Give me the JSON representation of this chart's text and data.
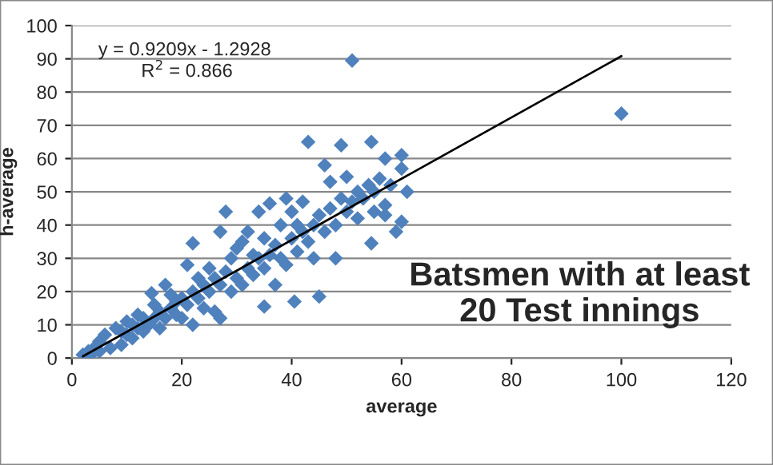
{
  "chart_data": {
    "type": "scatter",
    "xlabel": "average",
    "ylabel": "h-average",
    "xlim": [
      0,
      120
    ],
    "xticks": [
      0,
      20,
      40,
      60,
      80,
      100,
      120
    ],
    "ylim": [
      0,
      100
    ],
    "yticks": [
      0,
      10,
      20,
      30,
      40,
      50,
      60,
      70,
      80,
      90,
      100
    ],
    "grid": "y",
    "legend": false,
    "annotations": [
      "y = 0.9209x - 1.2928",
      "R$^{2}$ = 0.866",
      "Batsmen with at least\n20 Test innings"
    ],
    "series": [
      {
        "color": "#4f81bd",
        "marker": "diamond",
        "x": [
          2,
          3,
          3.5,
          4,
          5,
          5,
          6,
          7,
          8,
          9,
          9,
          10,
          10,
          11,
          11,
          12,
          12,
          13,
          13,
          14,
          14.5,
          15,
          15,
          16,
          16,
          17,
          17,
          18,
          18,
          19,
          19,
          20,
          20,
          21,
          21,
          22,
          22,
          22,
          23,
          23,
          24,
          24,
          25,
          25,
          26,
          26,
          27,
          27,
          27,
          28,
          28,
          29,
          29,
          30,
          30,
          31,
          31,
          32,
          32,
          33,
          33,
          34,
          34,
          35,
          35,
          35,
          36,
          36,
          37,
          37,
          38,
          38,
          39,
          39,
          40,
          40,
          40.5,
          41,
          41,
          42,
          42,
          43,
          43,
          44,
          44,
          45,
          45,
          46,
          46,
          47,
          47,
          48,
          48,
          49,
          49,
          50,
          50,
          51,
          51,
          52,
          52,
          53,
          54,
          54.5,
          54.5,
          55,
          55,
          56,
          57,
          57,
          57,
          58,
          59,
          60,
          60,
          61,
          60,
          100
        ],
        "values": [
          1,
          2,
          1,
          3,
          2,
          5,
          7,
          3,
          9,
          4,
          8,
          7,
          11,
          6,
          10,
          9,
          13,
          8,
          12,
          10,
          19.5,
          12,
          16,
          9,
          14,
          12,
          22,
          15,
          19,
          13,
          17,
          12,
          18,
          16,
          28,
          10,
          20,
          34.5,
          18,
          24,
          15,
          22,
          20,
          27,
          14,
          24,
          12,
          22,
          38,
          44,
          26,
          20,
          30,
          24,
          33,
          22,
          35,
          27,
          38,
          25,
          31,
          30,
          44,
          15.5,
          27,
          36,
          46.5,
          31,
          22,
          34,
          30,
          40,
          48,
          28,
          36,
          44,
          17,
          32,
          40,
          38,
          47,
          65,
          35,
          40,
          30,
          18.5,
          43,
          58,
          38,
          53,
          45,
          40,
          30,
          64,
          48,
          54.5,
          44,
          89.5,
          47,
          42,
          50,
          48,
          52,
          65,
          34.5,
          44,
          50,
          54,
          60,
          46,
          43,
          52,
          38,
          61,
          57,
          50,
          41,
          73.5
        ]
      },
      {
        "type": "line",
        "color": "#000000",
        "marker": "none",
        "x": [
          2,
          100
        ],
        "values": [
          0.5,
          90.8
        ]
      }
    ]
  }
}
